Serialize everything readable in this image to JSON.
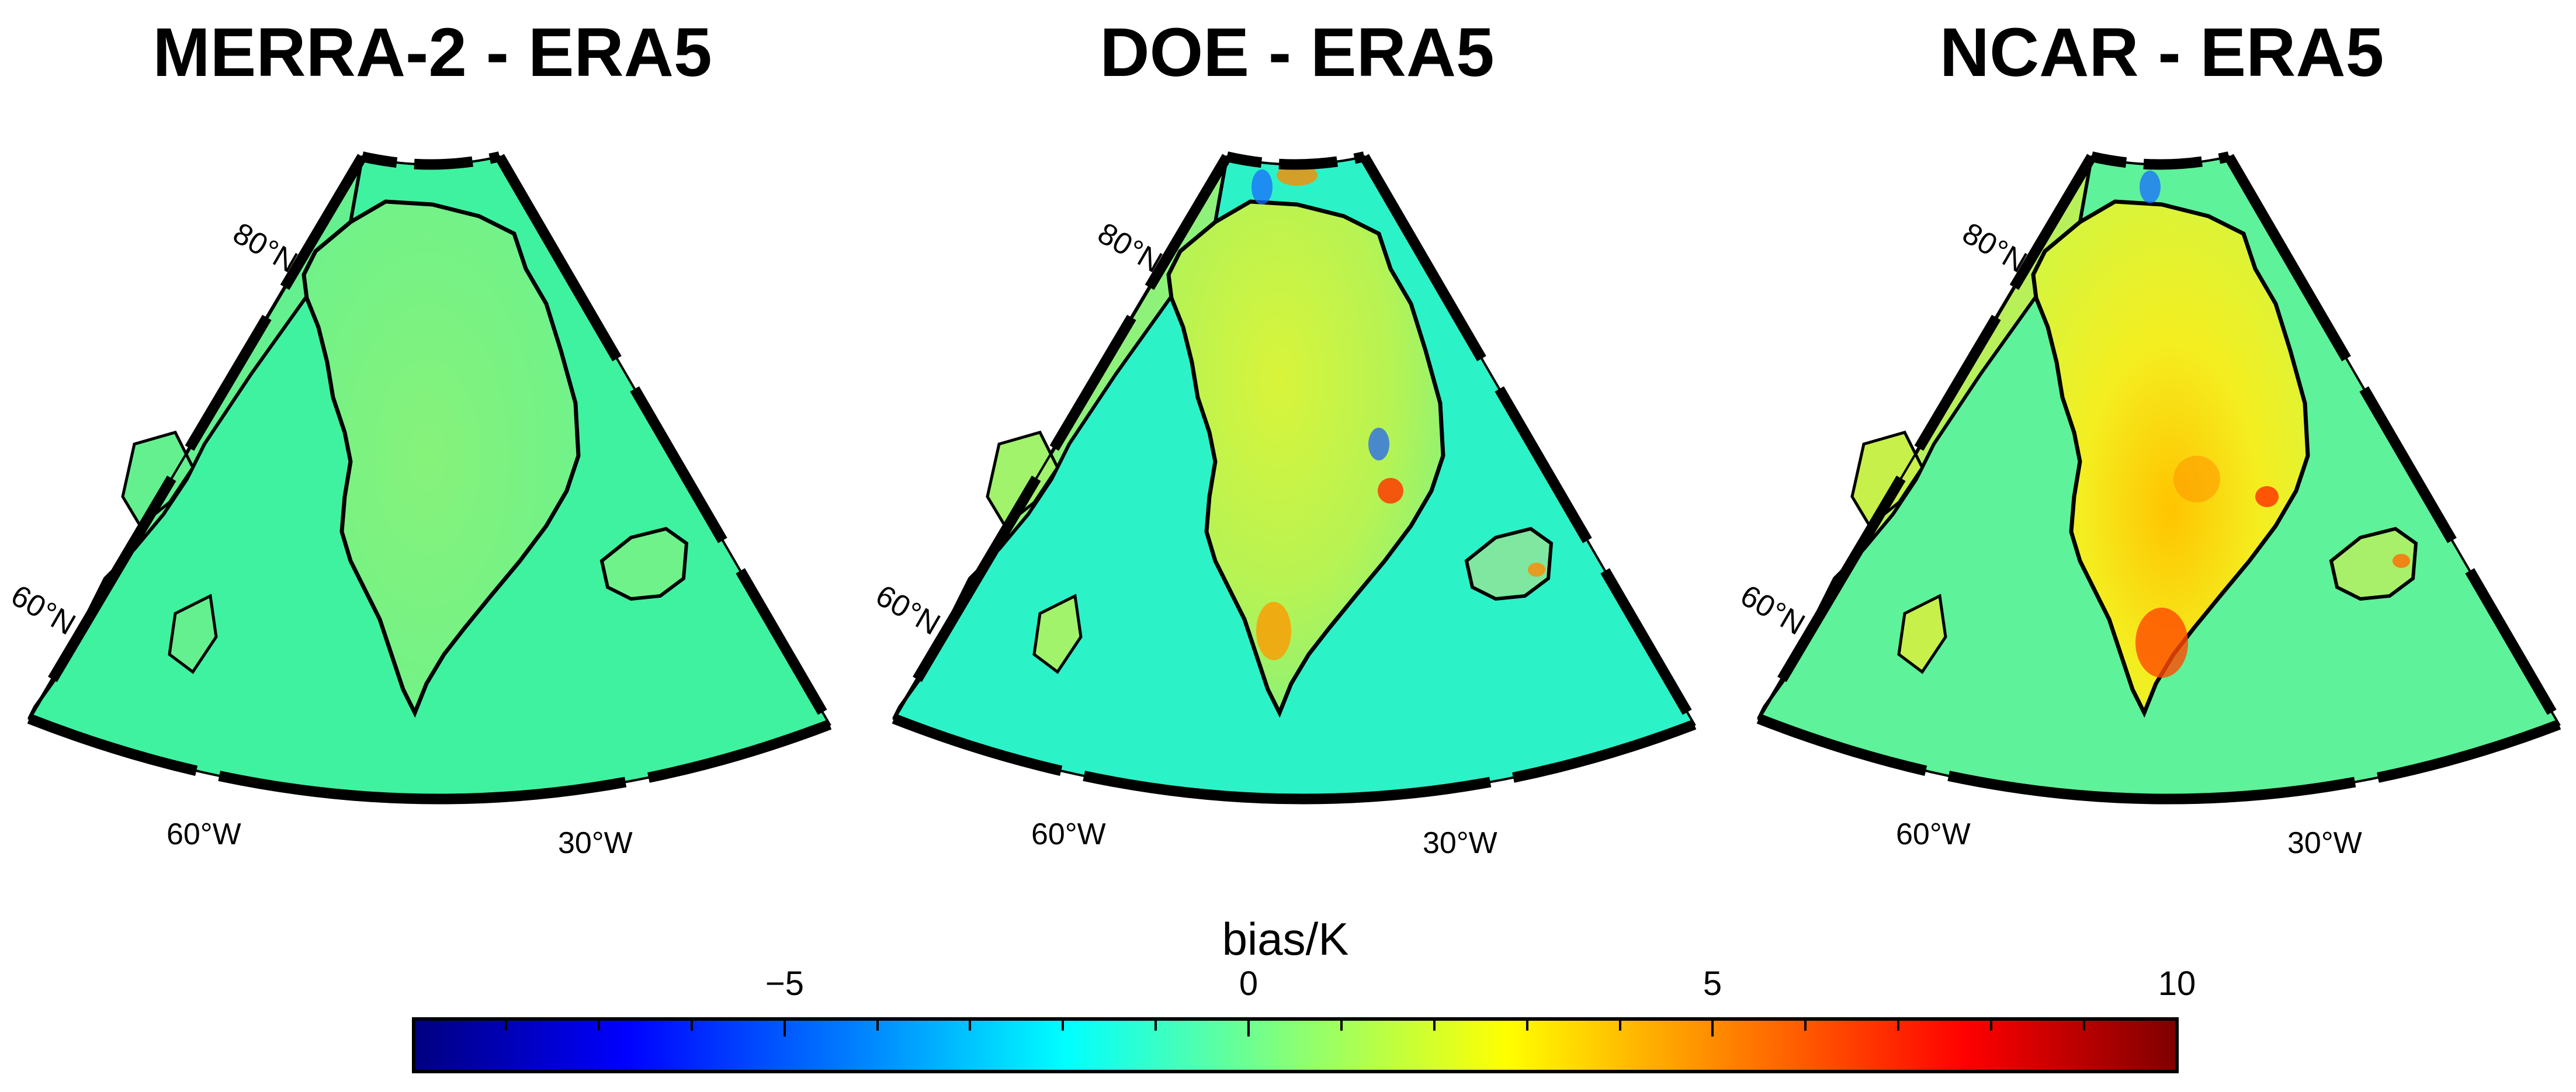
{
  "panels": [
    {
      "title": "MERRA-2 - ERA5",
      "lat_labels": [
        "80°N",
        "60°N"
      ],
      "lon_labels": [
        "60°W",
        "30°W"
      ]
    },
    {
      "title": "DOE - ERA5",
      "lat_labels": [
        "80°N",
        "60°N"
      ],
      "lon_labels": [
        "60°W",
        "30°W"
      ]
    },
    {
      "title": "NCAR - ERA5",
      "lat_labels": [
        "80°N",
        "60°N"
      ],
      "lon_labels": [
        "60°W",
        "30°W"
      ]
    }
  ],
  "colorbar": {
    "label": "bias/K",
    "min": -9,
    "max": 10,
    "ticks": [
      "−5",
      "0",
      "5",
      "10"
    ],
    "colors": [
      "#00007f",
      "#0000ff",
      "#007fff",
      "#00ffff",
      "#7fff7f",
      "#ffff00",
      "#ff7f00",
      "#ff0000",
      "#7f0000"
    ]
  },
  "palette": {
    "ocean": "#3df0b0",
    "land_neutral": "#6ff28a",
    "ice_warm": "#f6f42a",
    "hot": "#ff8a00",
    "cold": "#1a9bff"
  }
}
